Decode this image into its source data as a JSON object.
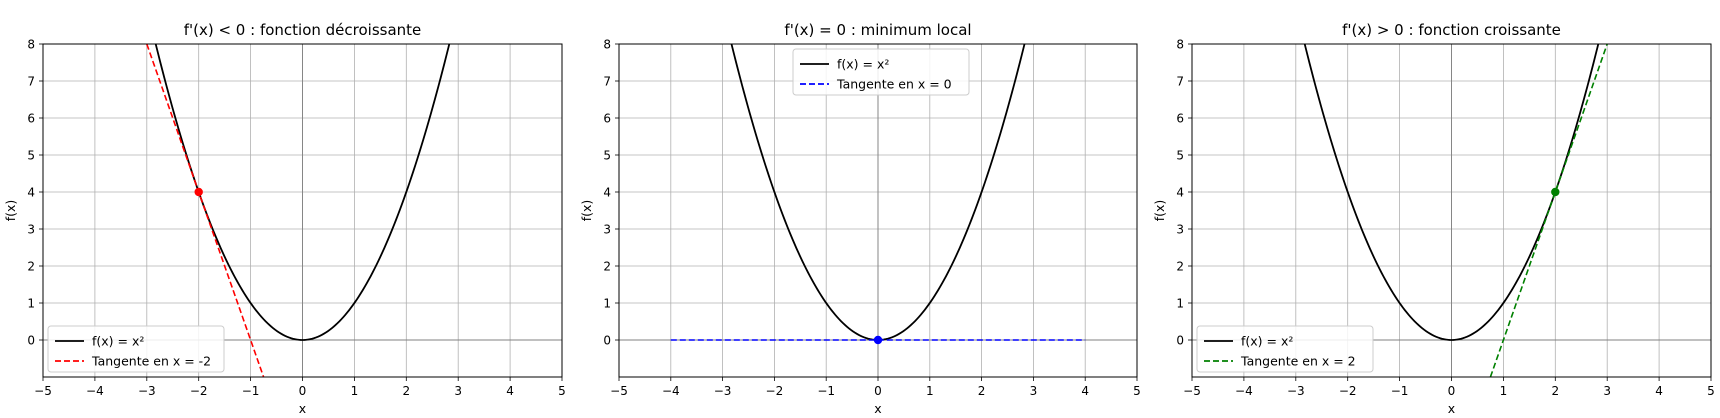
{
  "chart_data": [
    {
      "type": "line",
      "title": "f'(x) < 0 : fonction décroissante",
      "xlabel": "x",
      "ylabel": "f(x)",
      "xlim": [
        -5,
        5
      ],
      "ylim": [
        -1,
        8
      ],
      "xticks": [
        "−5",
        "−4",
        "−3",
        "−2",
        "−1",
        "0",
        "1",
        "2",
        "3",
        "4",
        "5"
      ],
      "yticks": [
        "0",
        "1",
        "2",
        "3",
        "4",
        "5",
        "6",
        "7",
        "8"
      ],
      "grid": true,
      "legend_position": "lower-left",
      "series": [
        {
          "name": "f(x) = x²",
          "function": "x^2",
          "x_range": [
            -3,
            3
          ],
          "color": "#000000",
          "style": "solid"
        },
        {
          "name": "Tangente en x = -2",
          "function": "-4x - 4",
          "x_range": [
            -3,
            -0.75
          ],
          "color": "#ff0000",
          "style": "dashed"
        }
      ],
      "point": {
        "x": -2,
        "y": 4,
        "color": "#ff0000"
      }
    },
    {
      "type": "line",
      "title": "f'(x) = 0 : minimum local",
      "xlabel": "x",
      "ylabel": "f(x)",
      "xlim": [
        -5,
        5
      ],
      "ylim": [
        -1,
        8
      ],
      "xticks": [
        "−5",
        "−4",
        "−3",
        "−2",
        "−1",
        "0",
        "1",
        "2",
        "3",
        "4",
        "5"
      ],
      "yticks": [
        "0",
        "1",
        "2",
        "3",
        "4",
        "5",
        "6",
        "7",
        "8"
      ],
      "grid": true,
      "legend_position": "upper-center",
      "series": [
        {
          "name": "f(x) = x²",
          "function": "x^2",
          "x_range": [
            -3,
            3
          ],
          "color": "#000000",
          "style": "solid"
        },
        {
          "name": "Tangente en x = 0",
          "function": "0",
          "x_range": [
            -4,
            4
          ],
          "color": "#0000ff",
          "style": "dashed"
        }
      ],
      "point": {
        "x": 0,
        "y": 0,
        "color": "#0000ff"
      }
    },
    {
      "type": "line",
      "title": "f'(x) > 0 : fonction croissante",
      "xlabel": "x",
      "ylabel": "f(x)",
      "xlim": [
        -5,
        5
      ],
      "ylim": [
        -1,
        8
      ],
      "xticks": [
        "−5",
        "−4",
        "−3",
        "−2",
        "−1",
        "0",
        "1",
        "2",
        "3",
        "4",
        "5"
      ],
      "yticks": [
        "0",
        "1",
        "2",
        "3",
        "4",
        "5",
        "6",
        "7",
        "8"
      ],
      "grid": true,
      "legend_position": "lower-left",
      "series": [
        {
          "name": "f(x) = x²",
          "function": "x^2",
          "x_range": [
            -3,
            3
          ],
          "color": "#000000",
          "style": "solid"
        },
        {
          "name": "Tangente en x = 2",
          "function": "4x - 4",
          "x_range": [
            0.75,
            3
          ],
          "color": "#008000",
          "style": "dashed"
        }
      ],
      "point": {
        "x": 2,
        "y": 4,
        "color": "#008000"
      }
    }
  ]
}
